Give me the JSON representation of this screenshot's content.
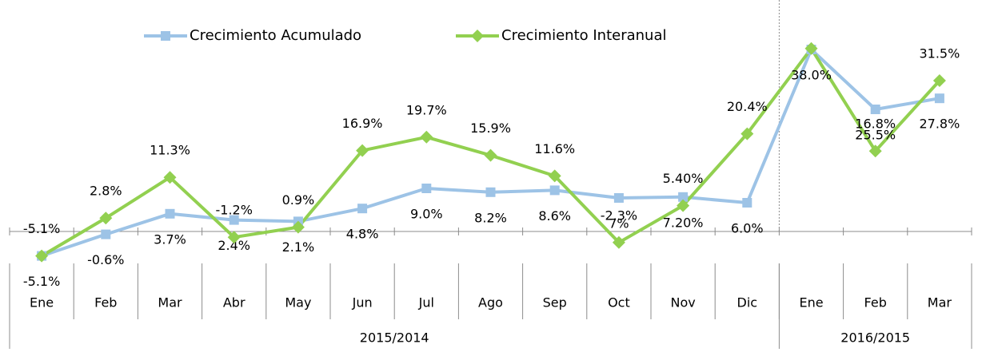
{
  "chart_data": {
    "type": "line",
    "categories": [
      "Ene",
      "Feb",
      "Mar",
      "Abr",
      "May",
      "Jun",
      "Jul",
      "Ago",
      "Sep",
      "Oct",
      "Nov",
      "Dic",
      "Ene",
      "Feb",
      "Mar"
    ],
    "group_labels": [
      "2015/2014",
      "2016/2015"
    ],
    "group_sizes": [
      12,
      3
    ],
    "ylim": [
      -8,
      45
    ],
    "legend": "top",
    "series": [
      {
        "name": "Crecimiento Acumulado",
        "color": "#9dc3e6",
        "marker": "square",
        "label_position": "below",
        "values": [
          -5.1,
          -0.6,
          3.7,
          2.4,
          2.1,
          4.8,
          9.0,
          8.2,
          8.6,
          7,
          7.2,
          6.0,
          38.0,
          25.5,
          27.8
        ],
        "value_labels": [
          "-5.1%",
          "-0.6%",
          "3.7%",
          "2.4%",
          "2.1%",
          "4.8%",
          "9.0%",
          "8.2%",
          "8.6%",
          "7%",
          "7.20%",
          "6.0%",
          "38.0%",
          "25.5%",
          "27.8%"
        ]
      },
      {
        "name": "Crecimiento Interanual",
        "color": "#92d050",
        "marker": "diamond",
        "label_position": "above",
        "values": [
          -5.1,
          2.8,
          11.3,
          -1.2,
          0.9,
          16.9,
          19.7,
          15.9,
          11.6,
          -2.3,
          5.4,
          20.4,
          38.2,
          16.8,
          31.5
        ],
        "value_labels": [
          "-5.1%",
          "2.8%",
          "11.3%",
          "-1.2%",
          "0.9%",
          "16.9%",
          "19.7%",
          "15.9%",
          "11.6%",
          "-2.3%",
          "5.40%",
          "20.4%",
          null,
          "16.8%",
          "31.5%"
        ]
      }
    ]
  }
}
